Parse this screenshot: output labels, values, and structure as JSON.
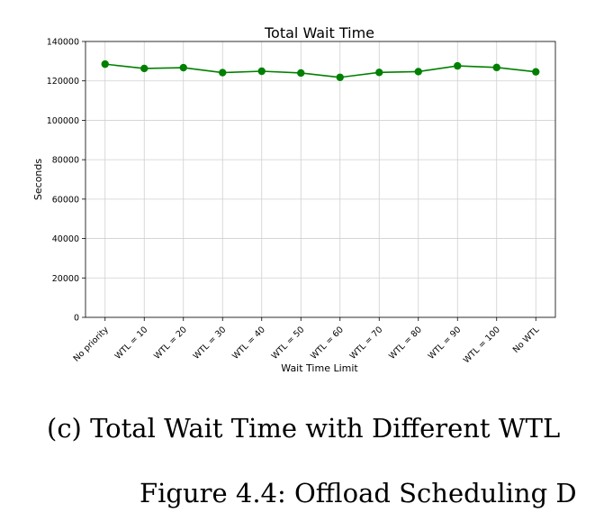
{
  "chart_data": {
    "type": "line",
    "title": "Total Wait Time",
    "xlabel": "Wait Time Limit",
    "ylabel": "Seconds",
    "categories": [
      "No priority",
      "WTL = 10",
      "WTL = 20",
      "WTL = 30",
      "WTL = 40",
      "WTL = 50",
      "WTL = 60",
      "WTL = 70",
      "WTL = 80",
      "WTL = 90",
      "WTL = 100",
      "No WTL"
    ],
    "values": [
      128500,
      126300,
      126700,
      124200,
      124900,
      124000,
      121800,
      124300,
      124700,
      127600,
      126800,
      124600
    ],
    "ylim": [
      0,
      140000
    ],
    "yticks": [
      0,
      20000,
      40000,
      60000,
      80000,
      100000,
      120000,
      140000
    ],
    "grid": true,
    "color": "#008000"
  },
  "caption": "(c) Total Wait Time with Different WTL",
  "figure_caption": "Figure 4.4: Offload Scheduling D"
}
